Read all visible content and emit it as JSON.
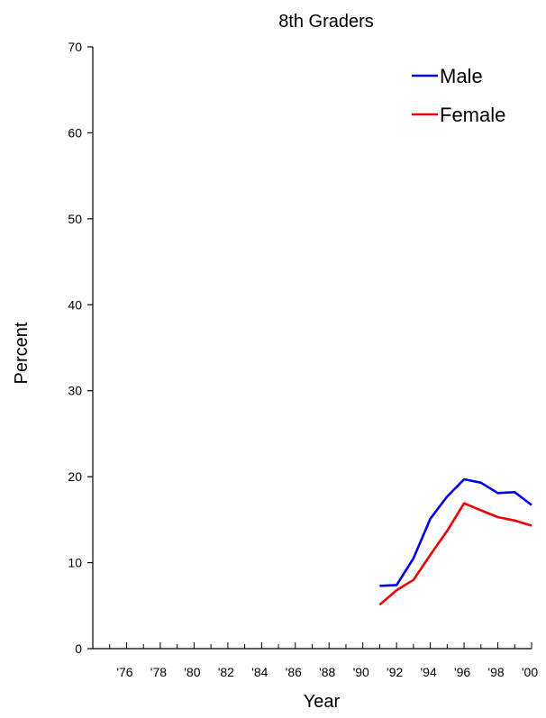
{
  "chart_data": {
    "type": "line",
    "title": "8th Graders",
    "xlabel": "Year",
    "ylabel": "Percent",
    "ylim": [
      0,
      70
    ],
    "yticks": [
      0,
      10,
      20,
      30,
      40,
      50,
      60,
      70
    ],
    "xlim": [
      1974,
      2000
    ],
    "xtick_labels": [
      {
        "year": 1976,
        "label": "'76"
      },
      {
        "year": 1978,
        "label": "'78"
      },
      {
        "year": 1980,
        "label": "'80"
      },
      {
        "year": 1982,
        "label": "'82"
      },
      {
        "year": 1984,
        "label": "'84"
      },
      {
        "year": 1986,
        "label": "'86"
      },
      {
        "year": 1988,
        "label": "'88"
      },
      {
        "year": 1990,
        "label": "'90"
      },
      {
        "year": 1992,
        "label": "'92"
      },
      {
        "year": 1994,
        "label": "'94"
      },
      {
        "year": 1996,
        "label": "'96"
      },
      {
        "year": 1998,
        "label": "'98"
      },
      {
        "year": 2000,
        "label": "'00"
      }
    ],
    "grid": false,
    "legend_position": "top-right",
    "series": [
      {
        "name": "Male",
        "color": "#0000ee",
        "x": [
          1991,
          1992,
          1993,
          1994,
          1995,
          1996,
          1997,
          1998,
          1999,
          2000
        ],
        "y": [
          7.3,
          7.4,
          10.5,
          15.1,
          17.7,
          19.7,
          19.3,
          18.1,
          18.2,
          16.7
        ]
      },
      {
        "name": "Female",
        "color": "#ee0000",
        "x": [
          1991,
          1992,
          1993,
          1994,
          1995,
          1996,
          1997,
          1998,
          1999,
          2000
        ],
        "y": [
          5.1,
          6.8,
          8.0,
          10.9,
          13.7,
          16.9,
          16.1,
          15.3,
          14.9,
          14.3
        ]
      }
    ]
  }
}
